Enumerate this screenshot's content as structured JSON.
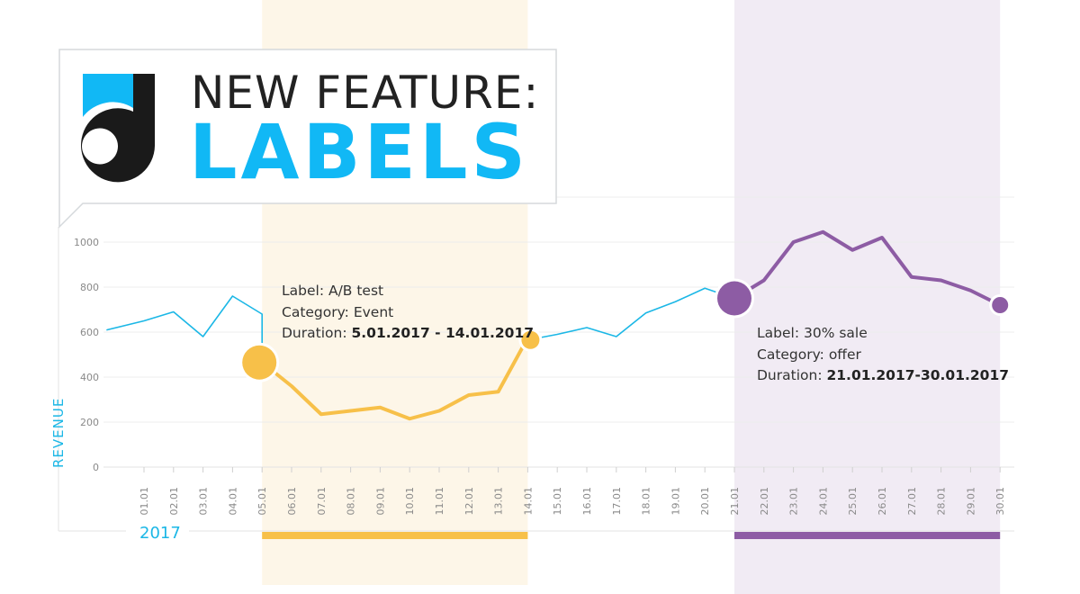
{
  "chart_data": {
    "type": "line",
    "title": "NEW FEATURE:",
    "subtitle": "LABELS",
    "ylabel": "REVENUE",
    "xlabel": "2017",
    "ylim": [
      0,
      1000
    ],
    "yticks": [
      0,
      200,
      400,
      600,
      800,
      1000
    ],
    "grid": true,
    "categories": [
      "01.01",
      "02.01",
      "03.01",
      "04.01",
      "05.01",
      "06.01",
      "07.01",
      "08.01",
      "09.01",
      "10.01",
      "11.01",
      "12.01",
      "13.01",
      "14.01",
      "15.01",
      "16.01",
      "17.01",
      "18.01",
      "19.01",
      "20.01",
      "21.01",
      "22.01",
      "23.01",
      "24.01",
      "25.01",
      "26.01",
      "27.01",
      "28.01",
      "29.01",
      "30.01"
    ],
    "series": [
      {
        "color": "#1bb7e6",
        "points": [
          {
            "x": "31.12",
            "y": 610
          },
          {
            "x": "01.01",
            "y": 650
          },
          {
            "x": "02.01",
            "y": 690
          },
          {
            "x": "03.01",
            "y": 580
          },
          {
            "x": "04.01",
            "y": 760
          },
          {
            "x": "05.01",
            "y": 680
          },
          {
            "x": "05.01",
            "y": 465
          }
        ]
      },
      {
        "color": "#f7c049",
        "points": [
          {
            "x": "05.01",
            "y": 465
          },
          {
            "x": "06.01",
            "y": 360
          },
          {
            "x": "07.01",
            "y": 235
          },
          {
            "x": "08.01",
            "y": 250
          },
          {
            "x": "09.01",
            "y": 265
          },
          {
            "x": "10.01",
            "y": 215
          },
          {
            "x": "11.01",
            "y": 250
          },
          {
            "x": "12.01",
            "y": 320
          },
          {
            "x": "13.01",
            "y": 335
          },
          {
            "x": "14.01",
            "y": 575
          }
        ]
      },
      {
        "color": "#1bb7e6",
        "points": [
          {
            "x": "14.01",
            "y": 565
          },
          {
            "x": "15.01",
            "y": 590
          },
          {
            "x": "16.01",
            "y": 620
          },
          {
            "x": "17.01",
            "y": 580
          },
          {
            "x": "18.01",
            "y": 685
          },
          {
            "x": "19.01",
            "y": 735
          },
          {
            "x": "20.01",
            "y": 795
          },
          {
            "x": "21.01",
            "y": 750
          }
        ]
      },
      {
        "color": "#8d5ca4",
        "points": [
          {
            "x": "21.01",
            "y": 750
          },
          {
            "x": "22.01",
            "y": 830
          },
          {
            "x": "23.01",
            "y": 1000
          },
          {
            "x": "24.01",
            "y": 1045
          },
          {
            "x": "25.01",
            "y": 965
          },
          {
            "x": "26.01",
            "y": 1020
          },
          {
            "x": "27.01",
            "y": 845
          },
          {
            "x": "28.01",
            "y": 830
          },
          {
            "x": "29.01",
            "y": 785
          },
          {
            "x": "30.01",
            "y": 720
          }
        ]
      }
    ],
    "labels": [
      {
        "label_prefix": "Label: ",
        "label_value": "A/B test",
        "category_prefix": "Category: ",
        "category_value": "Event",
        "duration_prefix": "Duration: ",
        "duration_value": "5.01.2017 - 14.01.2017",
        "start": "05.01",
        "end": "14.01",
        "color": "#f7c049",
        "band_color": "#fdf6e8"
      },
      {
        "label_prefix": "Label: ",
        "label_value": "30% sale",
        "category_prefix": "Category: ",
        "category_value": "offer",
        "duration_prefix": "Duration: ",
        "duration_value": "21.01.2017-30.01.2017",
        "start": "21.01",
        "end": "30.01",
        "color": "#8d5ca4",
        "band_color": "#f1ebf4"
      }
    ]
  },
  "logo": {
    "icon": "d-logo-icon",
    "dark": "#1a1a1a",
    "accent": "#11b8f5"
  }
}
